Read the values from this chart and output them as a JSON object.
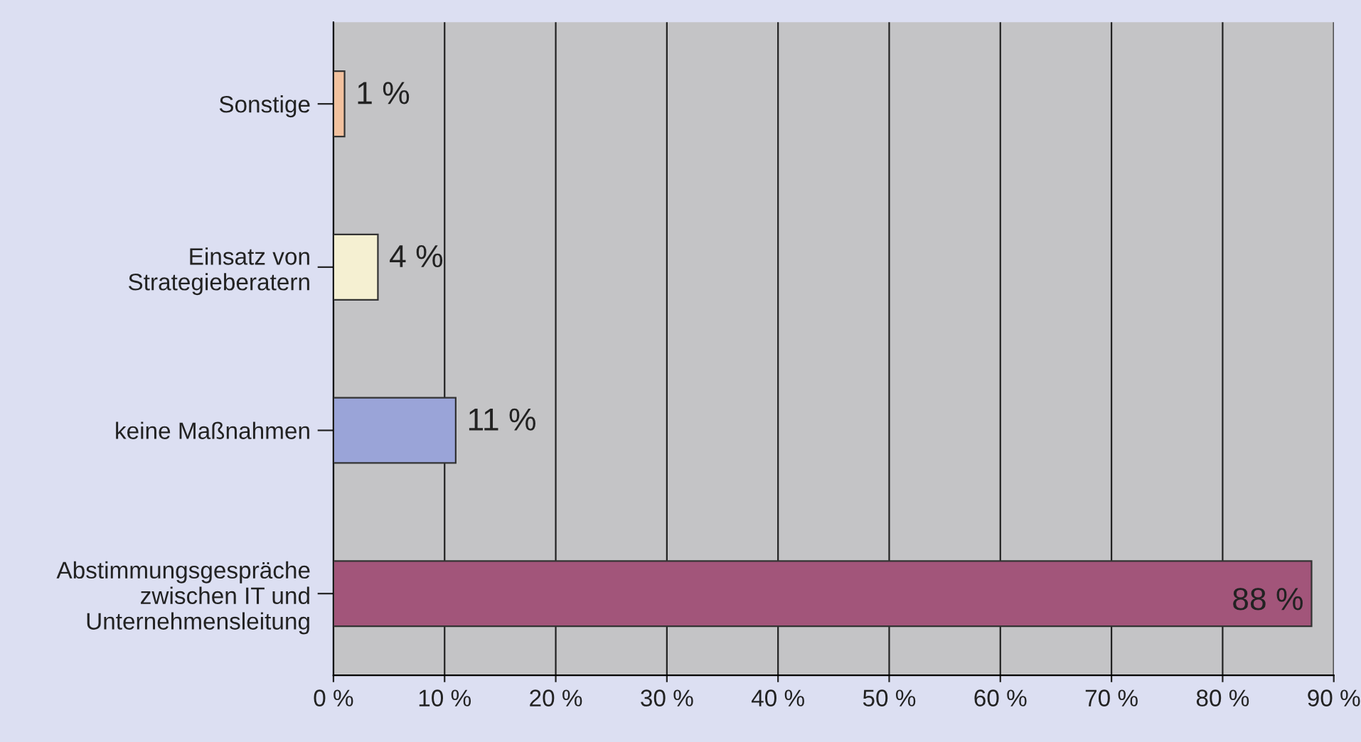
{
  "chart_data": {
    "type": "bar",
    "orientation": "horizontal",
    "categories": [
      "Sonstige",
      "Einsatz von\nStrategieberatern",
      "keine Maßnahmen",
      "Abstimmungsgespräche\nzwischen IT und\nUnternehmensleitung"
    ],
    "values": [
      1,
      4,
      11,
      88
    ],
    "colors": [
      "#f2c19e",
      "#f5f0d2",
      "#9aa4d8",
      "#a2557a"
    ],
    "value_labels": [
      "1 %",
      "4 %",
      "11 %",
      "88 %"
    ],
    "xlim": [
      0,
      90
    ],
    "xticks": [
      {
        "value": 0,
        "label": "0 %"
      },
      {
        "value": 10,
        "label": "10 %"
      },
      {
        "value": 20,
        "label": "20 %"
      },
      {
        "value": 30,
        "label": "30 %"
      },
      {
        "value": 40,
        "label": "40 %"
      },
      {
        "value": 50,
        "label": "50 %"
      },
      {
        "value": 60,
        "label": "60 %"
      },
      {
        "value": 70,
        "label": "70 %"
      },
      {
        "value": 80,
        "label": "80 %"
      },
      {
        "value": 90,
        "label": "90 %"
      }
    ],
    "grid": "x"
  }
}
